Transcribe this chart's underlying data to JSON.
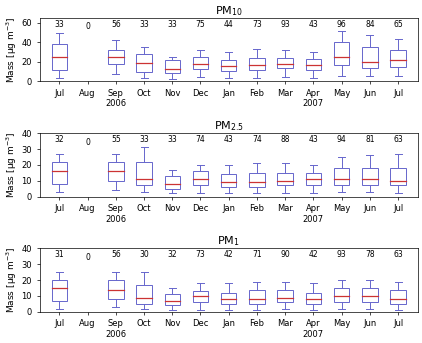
{
  "panels": [
    {
      "title": "PM$_{10}$",
      "ylim": [
        0,
        65
      ],
      "yticks": [
        0,
        20,
        40,
        60
      ],
      "counts": [
        33,
        0,
        56,
        33,
        33,
        75,
        44,
        73,
        93,
        43,
        96,
        84,
        65
      ],
      "boxes": [
        {
          "p5": 3,
          "p25": 12,
          "p50": 25,
          "p75": 38,
          "p95": 50
        },
        {
          "p5": 0,
          "p25": 0,
          "p50": 0,
          "p75": 0,
          "p95": 0
        },
        {
          "p5": 7,
          "p25": 18,
          "p50": 25,
          "p75": 32,
          "p95": 42
        },
        {
          "p5": 3,
          "p25": 10,
          "p50": 19,
          "p75": 28,
          "p95": 35
        },
        {
          "p5": 2,
          "p25": 8,
          "p50": 13,
          "p75": 22,
          "p95": 25
        },
        {
          "p5": 4,
          "p25": 13,
          "p50": 18,
          "p75": 25,
          "p95": 32
        },
        {
          "p5": 3,
          "p25": 11,
          "p50": 16,
          "p75": 22,
          "p95": 30
        },
        {
          "p5": 3,
          "p25": 12,
          "p50": 17,
          "p75": 24,
          "p95": 33
        },
        {
          "p5": 4,
          "p25": 14,
          "p50": 18,
          "p75": 24,
          "p95": 32
        },
        {
          "p5": 3,
          "p25": 12,
          "p50": 17,
          "p75": 23,
          "p95": 30
        },
        {
          "p5": 5,
          "p25": 17,
          "p50": 25,
          "p75": 40,
          "p95": 52
        },
        {
          "p5": 5,
          "p25": 14,
          "p50": 20,
          "p75": 35,
          "p95": 48
        },
        {
          "p5": 5,
          "p25": 15,
          "p50": 22,
          "p75": 32,
          "p95": 43
        }
      ]
    },
    {
      "title": "PM$_{2.5}$",
      "ylim": [
        0,
        40
      ],
      "yticks": [
        0,
        10,
        20,
        30,
        40
      ],
      "counts": [
        32,
        0,
        55,
        33,
        33,
        74,
        43,
        74,
        88,
        43,
        94,
        81,
        63
      ],
      "boxes": [
        {
          "p5": 3,
          "p25": 8,
          "p50": 16,
          "p75": 22,
          "p95": 27
        },
        {
          "p5": 0,
          "p25": 0,
          "p50": 0,
          "p75": 0,
          "p95": 0
        },
        {
          "p5": 4,
          "p25": 10,
          "p50": 16,
          "p75": 22,
          "p95": 27
        },
        {
          "p5": 3,
          "p25": 7,
          "p50": 11,
          "p75": 22,
          "p95": 31
        },
        {
          "p5": 2,
          "p25": 5,
          "p50": 8,
          "p75": 13,
          "p95": 17
        },
        {
          "p5": 2,
          "p25": 7,
          "p50": 11,
          "p75": 16,
          "p95": 20
        },
        {
          "p5": 2,
          "p25": 6,
          "p50": 9,
          "p75": 14,
          "p95": 20
        },
        {
          "p5": 2,
          "p25": 6,
          "p50": 9,
          "p75": 15,
          "p95": 21
        },
        {
          "p5": 2,
          "p25": 7,
          "p50": 10,
          "p75": 15,
          "p95": 21
        },
        {
          "p5": 2,
          "p25": 7,
          "p50": 11,
          "p75": 15,
          "p95": 20
        },
        {
          "p5": 3,
          "p25": 7,
          "p50": 11,
          "p75": 18,
          "p95": 25
        },
        {
          "p5": 3,
          "p25": 7,
          "p50": 11,
          "p75": 18,
          "p95": 26
        },
        {
          "p5": 2,
          "p25": 7,
          "p50": 10,
          "p75": 18,
          "p95": 27
        }
      ]
    },
    {
      "title": "PM$_{1}$",
      "ylim": [
        0,
        40
      ],
      "yticks": [
        0,
        10,
        20,
        30,
        40
      ],
      "counts": [
        31,
        0,
        56,
        30,
        32,
        73,
        42,
        71,
        90,
        42,
        93,
        78,
        63
      ],
      "boxes": [
        {
          "p5": 2,
          "p25": 7,
          "p50": 15,
          "p75": 20,
          "p95": 25
        },
        {
          "p5": 0,
          "p25": 0,
          "p50": 0,
          "p75": 0,
          "p95": 0
        },
        {
          "p5": 3,
          "p25": 8,
          "p50": 14,
          "p75": 20,
          "p95": 25
        },
        {
          "p5": 2,
          "p25": 5,
          "p50": 9,
          "p75": 17,
          "p95": 25
        },
        {
          "p5": 1,
          "p25": 4,
          "p50": 7,
          "p75": 11,
          "p95": 15
        },
        {
          "p5": 1,
          "p25": 6,
          "p50": 10,
          "p75": 13,
          "p95": 18
        },
        {
          "p5": 1,
          "p25": 5,
          "p50": 8,
          "p75": 12,
          "p95": 18
        },
        {
          "p5": 1,
          "p25": 5,
          "p50": 8,
          "p75": 14,
          "p95": 19
        },
        {
          "p5": 2,
          "p25": 6,
          "p50": 9,
          "p75": 14,
          "p95": 19
        },
        {
          "p5": 1,
          "p25": 5,
          "p50": 8,
          "p75": 12,
          "p95": 18
        },
        {
          "p5": 2,
          "p25": 6,
          "p50": 10,
          "p75": 15,
          "p95": 20
        },
        {
          "p5": 2,
          "p25": 6,
          "p50": 10,
          "p75": 15,
          "p95": 20
        },
        {
          "p5": 1,
          "p25": 5,
          "p50": 8,
          "p75": 14,
          "p95": 19
        }
      ]
    }
  ],
  "x_labels": [
    "Jul",
    "Aug",
    "Sep\n2006",
    "Oct",
    "Nov",
    "Dec",
    "Jan",
    "Feb",
    "Mar",
    "Apr\n2007",
    "May",
    "Jun",
    "Jul"
  ],
  "box_color": "#6666cc",
  "median_color": "#cc3333",
  "whisker_color": "#6666cc",
  "bg_color": "#ffffff",
  "ylabel": "Mass [μg m$^{-3}$]",
  "count_fontsize": 5.5,
  "title_fontsize": 8,
  "label_fontsize": 6.5,
  "tick_fontsize": 6
}
